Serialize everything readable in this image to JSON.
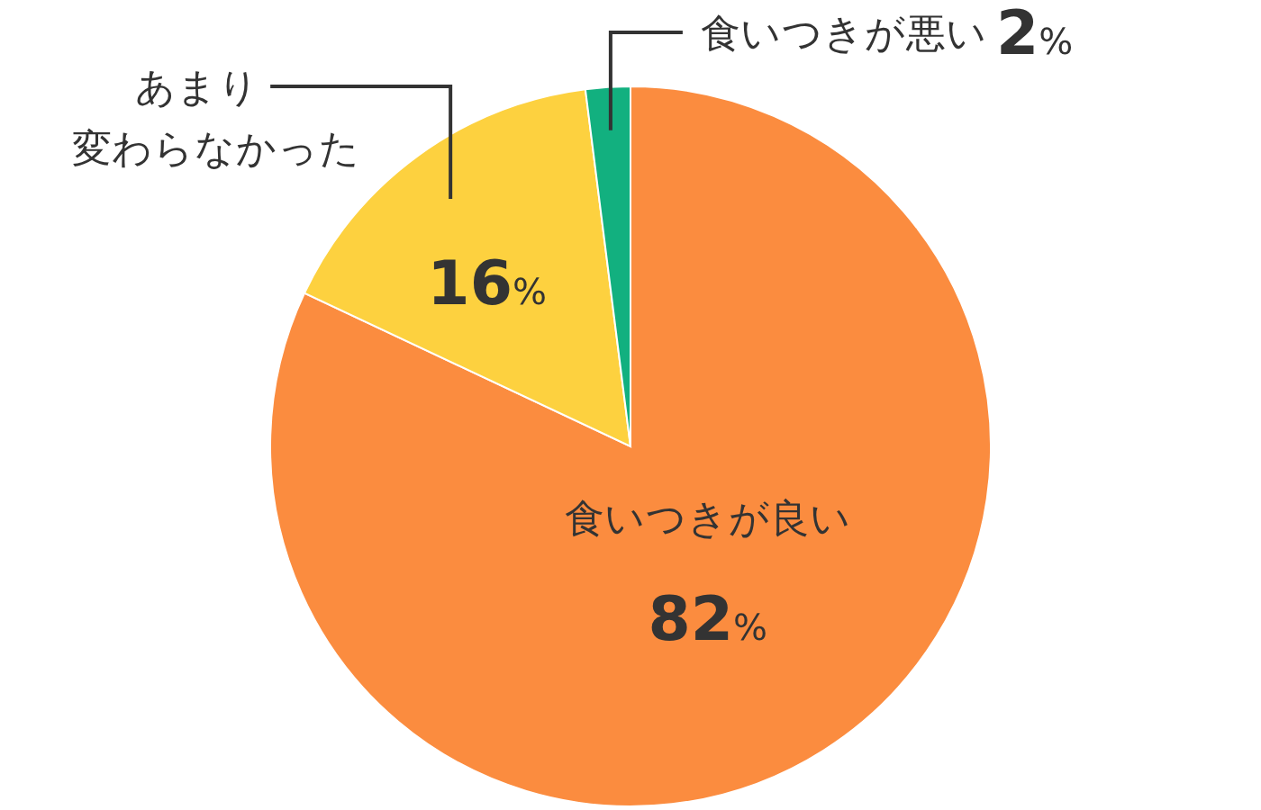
{
  "chart_data": {
    "type": "pie",
    "categories": [
      "食いつきが良い",
      "あまり変わらなかった",
      "食いつきが悪い"
    ],
    "values": [
      82,
      16,
      2
    ],
    "colors": [
      "#fb8c3f",
      "#fdd13f",
      "#12b07f"
    ],
    "value_labels": [
      "82%",
      "16%",
      "2%"
    ]
  }
}
